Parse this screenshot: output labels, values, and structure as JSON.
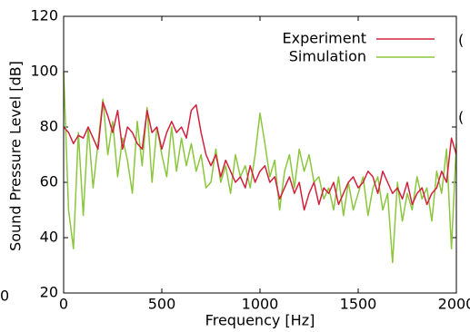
{
  "chart_data": {
    "type": "line",
    "x_label": "Frequency [Hz]",
    "y_label": "Sound Pressure Level [dB]",
    "x": [
      0,
      25,
      50,
      75,
      100,
      125,
      150,
      175,
      200,
      225,
      250,
      275,
      300,
      325,
      350,
      375,
      400,
      425,
      450,
      475,
      500,
      525,
      550,
      575,
      600,
      625,
      650,
      675,
      700,
      725,
      750,
      775,
      800,
      825,
      850,
      875,
      900,
      925,
      950,
      975,
      1000,
      1025,
      1050,
      1075,
      1100,
      1125,
      1150,
      1175,
      1200,
      1225,
      1250,
      1275,
      1300,
      1325,
      1350,
      1375,
      1400,
      1425,
      1450,
      1475,
      1500,
      1525,
      1550,
      1575,
      1600,
      1625,
      1650,
      1675,
      1700,
      1725,
      1750,
      1775,
      1800,
      1825,
      1850,
      1875,
      1900,
      1925,
      1950,
      1975,
      2000
    ],
    "series": [
      {
        "name": "Experiment",
        "color": "#d0213c",
        "values": [
          80,
          78,
          74,
          77,
          76,
          80,
          76,
          72,
          89,
          84,
          78,
          86,
          72,
          80,
          78,
          74,
          72,
          86,
          78,
          80,
          72,
          78,
          82,
          78,
          80,
          76,
          86,
          88,
          78,
          70,
          66,
          70,
          62,
          68,
          64,
          60,
          62,
          58,
          66,
          60,
          64,
          66,
          60,
          62,
          54,
          58,
          62,
          56,
          60,
          50,
          56,
          60,
          52,
          58,
          56,
          60,
          52,
          56,
          60,
          62,
          58,
          60,
          64,
          62,
          56,
          64,
          60,
          56,
          58,
          54,
          60,
          52,
          56,
          58,
          52,
          56,
          58,
          64,
          60,
          76,
          70
        ]
      },
      {
        "name": "Simulation",
        "color": "#8cc63e",
        "values": [
          100,
          50,
          36,
          78,
          48,
          80,
          58,
          74,
          90,
          70,
          82,
          62,
          76,
          68,
          56,
          82,
          66,
          87,
          60,
          80,
          70,
          62,
          80,
          64,
          76,
          66,
          74,
          64,
          70,
          58,
          60,
          72,
          60,
          66,
          56,
          70,
          62,
          66,
          58,
          70,
          85,
          74,
          62,
          68,
          50,
          64,
          70,
          58,
          72,
          64,
          70,
          60,
          62,
          54,
          58,
          50,
          62,
          48,
          60,
          50,
          56,
          62,
          48,
          58,
          62,
          50,
          56,
          31,
          60,
          46,
          56,
          50,
          62,
          54,
          58,
          46,
          64,
          56,
          72,
          36,
          74
        ]
      }
    ],
    "xlim": [
      0,
      2000
    ],
    "xticks": [
      0,
      500,
      1000,
      1500,
      2000
    ],
    "ylim": [
      20,
      120
    ],
    "yticks": [
      20,
      40,
      60,
      80,
      100,
      120
    ],
    "legend": "upper right",
    "annotations": [
      "(",
      "(",
      "0"
    ]
  }
}
